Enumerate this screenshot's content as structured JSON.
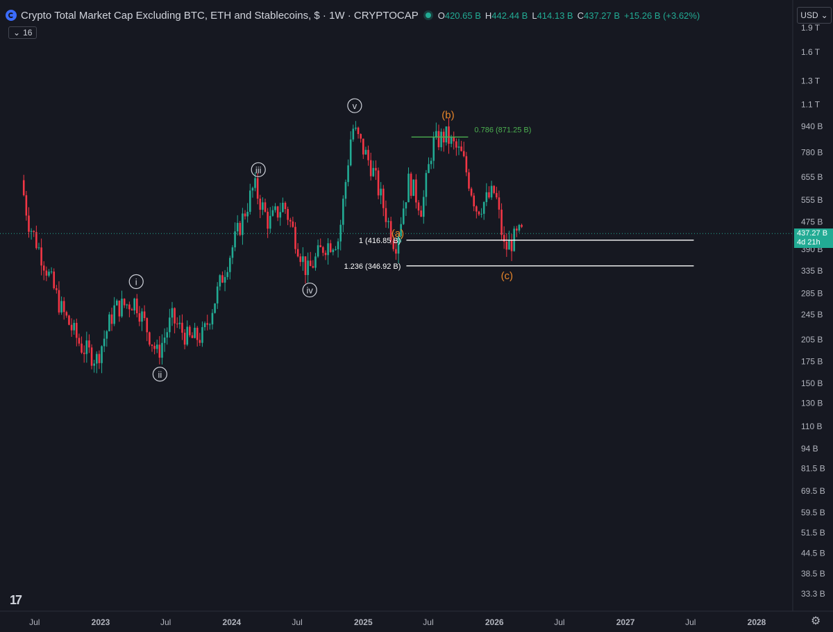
{
  "header": {
    "title": "Crypto Total Market Cap Excluding BTC, ETH and Stablecoins, $ · 1W · CRYPTOCAP",
    "open_label": "O",
    "open": "420.65 B",
    "high_label": "H",
    "high": "442.44 B",
    "low_label": "L",
    "low": "414.13 B",
    "close_label": "C",
    "close": "437.27 B",
    "change": "+15.26 B (+3.62%)"
  },
  "indicator_count": "16",
  "currency": "USD",
  "price_tag": {
    "value": "437.27 B",
    "countdown": "4d 21h"
  },
  "colors": {
    "up": "#22ab94",
    "down": "#f23645",
    "wave_white": "#d1d4dc",
    "wave_orange": "#e8862a",
    "fib_green": "#4caf50"
  },
  "chart_data": {
    "type": "candlestick",
    "y_scale": "log",
    "y_ticks": [
      "1.9 T",
      "1.6 T",
      "1.3 T",
      "1.1 T",
      "940 B",
      "780 B",
      "655 B",
      "555 B",
      "475 B",
      "390 B",
      "335 B",
      "285 B",
      "245 B",
      "205 B",
      "175 B",
      "150 B",
      "130 B",
      "110 B",
      "94 B",
      "81.5 B",
      "69.5 B",
      "59.5 B",
      "51.5 B",
      "44.5 B",
      "38.5 B",
      "33.3 B"
    ],
    "y_tick_values": [
      1900,
      1600,
      1300,
      1100,
      940,
      780,
      655,
      555,
      475,
      390,
      335,
      285,
      245,
      205,
      175,
      150,
      130,
      110,
      94,
      81.5,
      69.5,
      59.5,
      51.5,
      44.5,
      38.5,
      33.3
    ],
    "x_ticks": [
      "Jul",
      "2023",
      "Jul",
      "2024",
      "Jul",
      "2025",
      "Jul",
      "2026",
      "Jul",
      "2027",
      "Jul",
      "2028"
    ],
    "x_tick_dates": [
      "2022-07-01",
      "2023-01-01",
      "2023-07-01",
      "2024-01-01",
      "2024-07-01",
      "2025-01-01",
      "2025-07-01",
      "2026-01-01",
      "2026-07-01",
      "2027-01-01",
      "2027-07-01",
      "2028-01-01"
    ],
    "price_path": [
      [
        "2022-06-01",
        640
      ],
      [
        "2022-06-20",
        480
      ],
      [
        "2022-08-10",
        340
      ],
      [
        "2022-09-20",
        255
      ],
      [
        "2022-11-15",
        195
      ],
      [
        "2022-12-28",
        178
      ],
      [
        "2023-02-15",
        255
      ],
      [
        "2023-04-15",
        270
      ],
      [
        "2023-06-15",
        184
      ],
      [
        "2023-07-25",
        238
      ],
      [
        "2023-09-10",
        205
      ],
      [
        "2023-10-20",
        210
      ],
      [
        "2023-12-20",
        340
      ],
      [
        "2024-03-10",
        615
      ],
      [
        "2024-04-20",
        470
      ],
      [
        "2024-06-01",
        540
      ],
      [
        "2024-08-05",
        330
      ],
      [
        "2024-09-20",
        400
      ],
      [
        "2024-11-01",
        420
      ],
      [
        "2024-12-08",
        940
      ],
      [
        "2025-02-01",
        700
      ],
      [
        "2025-04-07",
        400
      ],
      [
        "2025-05-15",
        640
      ],
      [
        "2025-06-20",
        520
      ],
      [
        "2025-07-20",
        830
      ],
      [
        "2025-08-25",
        880
      ],
      [
        "2025-10-10",
        760
      ],
      [
        "2025-11-20",
        520
      ],
      [
        "2026-01-10",
        590
      ],
      [
        "2026-02-05",
        390
      ],
      [
        "2026-03-20",
        437
      ]
    ],
    "waves": [
      {
        "label": "i",
        "date": "2023-04-10",
        "value": 310
      },
      {
        "label": "ii",
        "date": "2023-06-15",
        "value": 160
      },
      {
        "label": "iii",
        "date": "2024-03-15",
        "value": 690
      },
      {
        "label": "iv",
        "date": "2024-08-05",
        "value": 292
      },
      {
        "label": "v",
        "date": "2024-12-08",
        "value": 1090
      },
      {
        "label": "(a)",
        "date": "2025-04-07",
        "value": 438
      },
      {
        "label": "(b)",
        "date": "2025-08-25",
        "value": 1020
      },
      {
        "label": "(c)",
        "date": "2026-02-05",
        "value": 323
      }
    ],
    "levels": [
      {
        "label": "0.786 (871.25 B)",
        "value": 871.25,
        "from": "2025-05-15",
        "to": "2025-10-20",
        "color": "#4caf50"
      },
      {
        "label": "1 (416.85 B)",
        "value": 416.85,
        "from": "2025-05-01",
        "to": "2027-07-10",
        "color": "#ffffff"
      },
      {
        "label": "1.236 (346.92 B)",
        "value": 346.92,
        "from": "2025-05-01",
        "to": "2027-07-10",
        "color": "#ffffff"
      }
    ],
    "last_price": 437.27
  }
}
